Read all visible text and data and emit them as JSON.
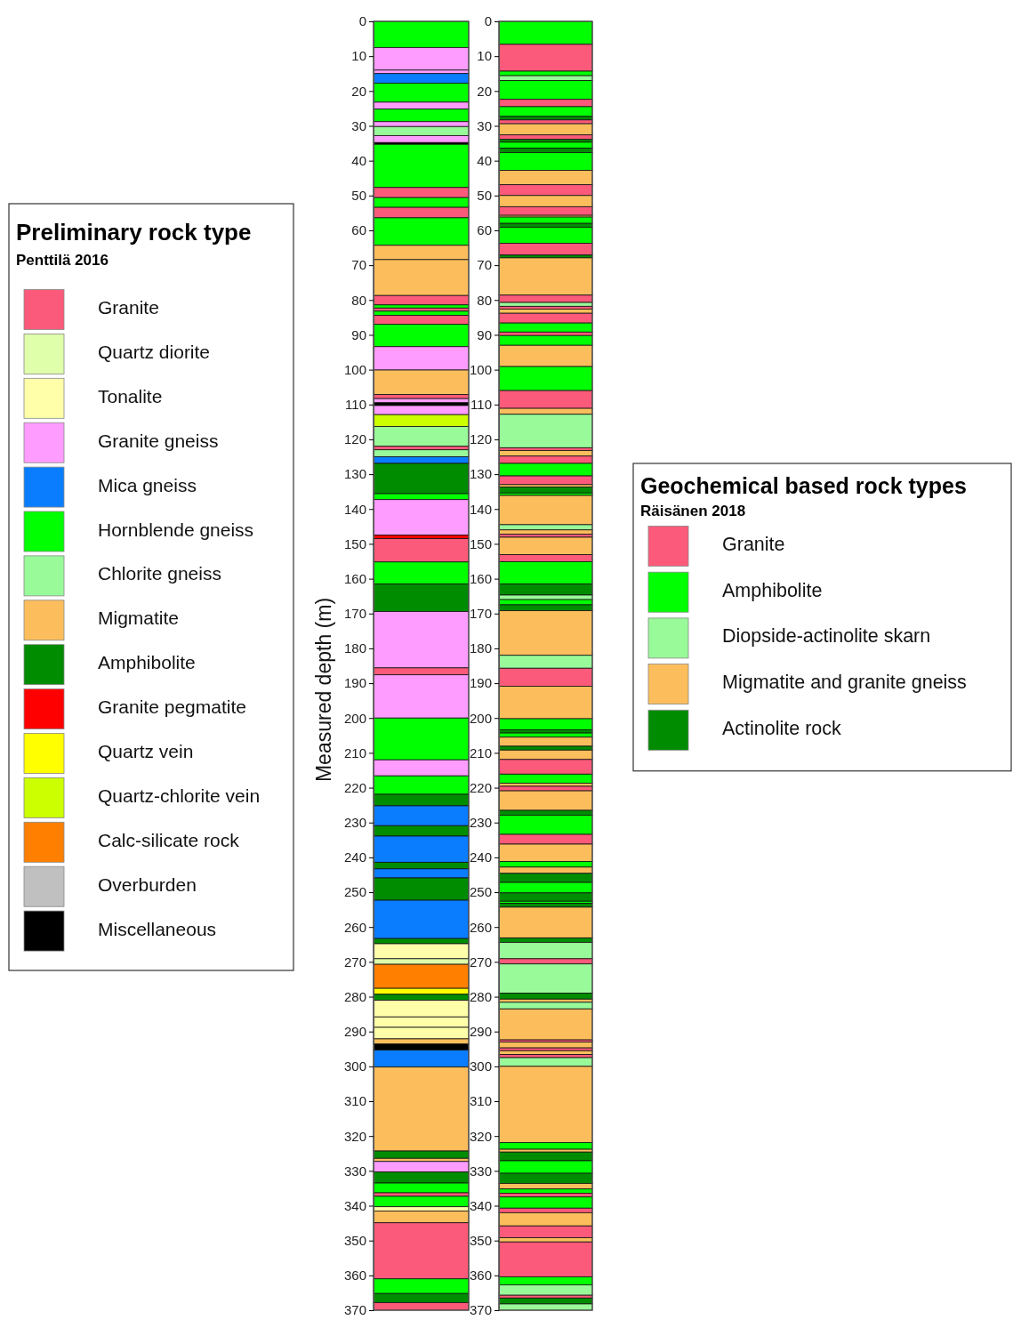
{
  "chart_data": [
    {
      "type": "bar",
      "stacked": true,
      "categories": [
        null
      ],
      "ylabel": "Measured depth (m)",
      "ylim": [
        370,
        0
      ],
      "yticks": [
        0,
        10,
        20,
        30,
        40,
        50,
        60,
        70,
        80,
        90,
        100,
        110,
        120,
        130,
        140,
        150,
        160,
        170,
        180,
        190,
        200,
        210,
        220,
        230,
        240,
        250,
        260,
        270,
        280,
        290,
        300,
        310,
        320,
        330,
        340,
        350,
        360,
        370
      ],
      "legend": "left",
      "legend_title": "Preliminary rock type",
      "annotations": [
        "Penttilä 2016"
      ],
      "series": [
        {
          "name": "Granite",
          "color": "#fc5a7a",
          "values": [
            null
          ]
        },
        {
          "name": "Quartz diorite",
          "color": "#dfffaa",
          "values": [
            null
          ]
        },
        {
          "name": "Tonalite",
          "color": "#ffffaa",
          "values": [
            null
          ]
        },
        {
          "name": "Granite gneiss",
          "color": "#ff9cff",
          "values": [
            null
          ]
        },
        {
          "name": "Mica gneiss",
          "color": "#0a7dff",
          "values": [
            null
          ]
        },
        {
          "name": "Hornblende gneiss",
          "color": "#00ff00",
          "values": [
            null
          ]
        },
        {
          "name": "Chlorite gneiss",
          "color": "#99fa99",
          "values": [
            null
          ]
        },
        {
          "name": "Migmatite",
          "color": "#fcbe5c",
          "values": [
            null
          ]
        },
        {
          "name": "Amphibolite",
          "color": "#008c00",
          "values": [
            null
          ]
        },
        {
          "name": "Granite pegmatite",
          "color": "#ff0000",
          "values": [
            null
          ]
        },
        {
          "name": "Quartz vein",
          "color": "#ffff00",
          "values": [
            null
          ]
        },
        {
          "name": "Quartz-chlorite vein",
          "color": "#ccff00",
          "values": [
            null
          ]
        },
        {
          "name": "Calc-silicate rock",
          "color": "#ff8000",
          "values": [
            null
          ]
        },
        {
          "name": "Overburden",
          "color": "#c0c0c0",
          "values": [
            null
          ]
        },
        {
          "name": "Miscellaneous",
          "color": "#000000",
          "values": [
            null
          ]
        },
        {
          "color": "#00ff00",
          "values": [
            7.5
          ]
        },
        {
          "color": "#ff9cff",
          "values": [
            6.5
          ]
        },
        {
          "color": "#ff9cff",
          "values": [
            1
          ]
        },
        {
          "color": "#0a7dff",
          "values": [
            2.8
          ]
        },
        {
          "color": "#00ff00",
          "values": [
            5.4
          ]
        },
        {
          "color": "#ff9cff",
          "values": [
            2
          ]
        },
        {
          "color": "#00ff00",
          "values": [
            3.6
          ]
        },
        {
          "color": "#ff9cff",
          "values": [
            1.4
          ]
        },
        {
          "color": "#99fa99",
          "values": [
            2.6
          ]
        },
        {
          "color": "#ff9cff",
          "values": [
            2
          ]
        },
        {
          "color": "#000000",
          "values": [
            0.5
          ]
        },
        {
          "color": "#00ff00",
          "values": [
            12.4
          ]
        },
        {
          "color": "#fc5a7a",
          "values": [
            2.9
          ]
        },
        {
          "color": "#00ff00",
          "values": [
            2.8
          ]
        },
        {
          "color": "#fc5a7a",
          "values": [
            3
          ]
        },
        {
          "color": "#00ff00",
          "values": [
            7.9
          ]
        },
        {
          "color": "#fcbe5c",
          "values": [
            4.1
          ]
        },
        {
          "color": "#fcbe5c",
          "values": [
            10.3
          ]
        },
        {
          "color": "#fc5a7a",
          "values": [
            2.7
          ]
        },
        {
          "color": "#00ff00",
          "values": [
            0.9
          ]
        },
        {
          "color": "#fc5a7a",
          "values": [
            0.9
          ]
        },
        {
          "color": "#00ff00",
          "values": [
            1.2
          ]
        },
        {
          "color": "#fc5a7a",
          "values": [
            2.6
          ]
        },
        {
          "color": "#00ff00",
          "values": [
            6.4
          ]
        },
        {
          "color": "#ff9cff",
          "values": [
            6.7
          ]
        },
        {
          "color": "#fcbe5c",
          "values": [
            7
          ]
        },
        {
          "color": "#fc5a7a",
          "values": [
            1.2
          ]
        },
        {
          "color": "#ff9cff",
          "values": [
            1.2
          ]
        },
        {
          "color": "#000000",
          "values": [
            0.8
          ]
        },
        {
          "color": "#ff9cff",
          "values": [
            2.6
          ]
        },
        {
          "color": "#ccff00",
          "values": [
            3.4
          ]
        },
        {
          "color": "#99fa99",
          "values": [
            5.7
          ]
        },
        {
          "color": "#fc5a7a",
          "values": [
            1
          ]
        },
        {
          "color": "#99fa99",
          "values": [
            2
          ]
        },
        {
          "color": "#0a7dff",
          "values": [
            1.9
          ]
        },
        {
          "color": "#008c00",
          "values": [
            8.7
          ]
        },
        {
          "color": "#00ff00",
          "values": [
            1.7
          ]
        },
        {
          "color": "#ff9cff",
          "values": [
            10.2
          ]
        },
        {
          "color": "#ff0000",
          "values": [
            1
          ]
        },
        {
          "color": "#fc5a7a",
          "values": [
            6.7
          ]
        },
        {
          "color": "#00ff00",
          "values": [
            6.3
          ]
        },
        {
          "color": "#008c00",
          "values": [
            7.9
          ]
        },
        {
          "color": "#ff9cff",
          "values": [
            16.2
          ]
        },
        {
          "color": "#fc5a7a",
          "values": [
            2
          ]
        },
        {
          "color": "#ff9cff",
          "values": [
            12.4
          ]
        },
        {
          "color": "#00ff00",
          "values": [
            12
          ]
        },
        {
          "color": "#ff9cff",
          "values": [
            4.6
          ]
        },
        {
          "color": "#00ff00",
          "values": [
            5.3
          ]
        },
        {
          "color": "#008c00",
          "values": [
            3.3
          ]
        },
        {
          "color": "#0a7dff",
          "values": [
            5.7
          ]
        },
        {
          "color": "#008c00",
          "values": [
            3
          ]
        },
        {
          "color": "#0a7dff",
          "values": [
            7.5
          ]
        },
        {
          "color": "#008c00",
          "values": [
            1.9
          ]
        },
        {
          "color": "#0a7dff",
          "values": [
            2.6
          ]
        },
        {
          "color": "#008c00",
          "values": [
            6.4
          ]
        },
        {
          "color": "#0a7dff",
          "values": [
            11
          ]
        },
        {
          "color": "#008c00",
          "values": [
            1.5
          ]
        },
        {
          "color": "#ffffaa",
          "values": [
            4.3
          ]
        },
        {
          "color": "#dfffaa",
          "values": [
            1.6
          ]
        },
        {
          "color": "#ff8000",
          "values": [
            6.9
          ]
        },
        {
          "color": "#ffff00",
          "values": [
            1.7
          ]
        },
        {
          "color": "#008c00",
          "values": [
            1.7
          ]
        },
        {
          "color": "#ffffaa",
          "values": [
            4.8
          ]
        },
        {
          "color": "#ffffaa",
          "values": [
            3
          ]
        },
        {
          "color": "#ffffaa",
          "values": [
            3.3
          ]
        },
        {
          "color": "#fcbe5c",
          "values": [
            1.5
          ]
        },
        {
          "color": "#000000",
          "values": [
            1.7
          ]
        },
        {
          "color": "#0a7dff",
          "values": [
            4.9
          ]
        },
        {
          "color": "#fcbe5c",
          "values": [
            24.1
          ]
        },
        {
          "color": "#008c00",
          "values": [
            2.1
          ]
        },
        {
          "color": "#fcbe5c",
          "values": [
            0.9
          ]
        },
        {
          "color": "#ff9cff",
          "values": [
            3
          ]
        },
        {
          "color": "#008c00",
          "values": [
            3.2
          ]
        },
        {
          "color": "#00ff00",
          "values": [
            2.8
          ]
        },
        {
          "color": "#fc5a7a",
          "values": [
            1
          ]
        },
        {
          "color": "#00ff00",
          "values": [
            3
          ]
        },
        {
          "color": "#ffffaa",
          "values": [
            1.2
          ]
        },
        {
          "color": "#fcbe5c",
          "values": [
            3.4
          ]
        },
        {
          "color": "#fc5a7a",
          "values": [
            16.1
          ]
        },
        {
          "color": "#00ff00",
          "values": [
            4.2
          ]
        },
        {
          "color": "#008c00",
          "values": [
            2.6
          ]
        },
        {
          "color": "#fc5a7a",
          "values": [
            2.2
          ]
        }
      ]
    },
    {
      "type": "bar",
      "stacked": true,
      "categories": [
        null
      ],
      "ylim": [
        370,
        0
      ],
      "yticks": [
        0,
        10,
        20,
        30,
        40,
        50,
        60,
        70,
        80,
        90,
        100,
        110,
        120,
        130,
        140,
        150,
        160,
        170,
        180,
        190,
        200,
        210,
        220,
        230,
        240,
        250,
        260,
        270,
        280,
        290,
        300,
        310,
        320,
        330,
        340,
        350,
        360,
        370
      ],
      "legend": "right",
      "legend_title": "Geochemical based rock types",
      "annotations": [
        "Räisänen 2018"
      ],
      "series": [
        {
          "name": "Granite",
          "color": "#fc5a7a",
          "values": [
            null
          ]
        },
        {
          "name": "Amphibolite",
          "color": "#00ff00",
          "values": [
            null
          ]
        },
        {
          "name": "Diopside-actinolite skarn",
          "color": "#99fa99",
          "values": [
            null
          ]
        },
        {
          "name": "Migmatite and granite gneiss",
          "color": "#fcbe5c",
          "values": [
            null
          ]
        },
        {
          "name": "Actinolite rock",
          "color": "#008c00",
          "values": [
            null
          ]
        },
        {
          "color": "#00ff00",
          "values": [
            6.6
          ]
        },
        {
          "color": "#fc5a7a",
          "values": [
            7.7
          ]
        },
        {
          "color": "#00ff00",
          "values": [
            1.3
          ]
        },
        {
          "color": "#99fa99",
          "values": [
            1.4
          ]
        },
        {
          "color": "#00ff00",
          "values": [
            5.4
          ]
        },
        {
          "color": "#fc5a7a",
          "values": [
            2.1
          ]
        },
        {
          "color": "#00ff00",
          "values": [
            2.8
          ]
        },
        {
          "color": "#008c00",
          "values": [
            1
          ]
        },
        {
          "color": "#fc5a7a",
          "values": [
            1.1
          ]
        },
        {
          "color": "#fcbe5c",
          "values": [
            3.2
          ]
        },
        {
          "color": "#fc5a7a",
          "values": [
            1.3
          ]
        },
        {
          "color": "#008c00",
          "values": [
            0.8
          ]
        },
        {
          "color": "#00ff00",
          "values": [
            1.7
          ]
        },
        {
          "color": "#008c00",
          "values": [
            1.3
          ]
        },
        {
          "color": "#00ff00",
          "values": [
            5.1
          ]
        },
        {
          "color": "#fcbe5c",
          "values": [
            4.1
          ]
        },
        {
          "color": "#fc5a7a",
          "values": [
            3.1
          ]
        },
        {
          "color": "#fcbe5c",
          "values": [
            3.2
          ]
        },
        {
          "color": "#fc5a7a",
          "values": [
            2.5
          ]
        },
        {
          "color": "#fcbe5c",
          "values": [
            0.5
          ]
        },
        {
          "color": "#00ff00",
          "values": [
            1.8
          ]
        },
        {
          "color": "#008c00",
          "values": [
            1.1
          ]
        },
        {
          "color": "#00ff00",
          "values": [
            4.6
          ]
        },
        {
          "color": "#fc5a7a",
          "values": [
            3.4
          ]
        },
        {
          "color": "#008c00",
          "values": [
            0.8
          ]
        },
        {
          "color": "#fcbe5c",
          "values": [
            10.7
          ]
        },
        {
          "color": "#fc5a7a",
          "values": [
            2.1
          ]
        },
        {
          "color": "#99fa99",
          "values": [
            1.1
          ]
        },
        {
          "color": "#fc5a7a",
          "values": [
            0.8
          ]
        },
        {
          "color": "#fcbe5c",
          "values": [
            1.2
          ]
        },
        {
          "color": "#fc5a7a",
          "values": [
            2.8
          ]
        },
        {
          "color": "#00ff00",
          "values": [
            2.6
          ]
        },
        {
          "color": "#fc5a7a",
          "values": [
            1
          ]
        },
        {
          "color": "#00ff00",
          "values": [
            2.8
          ]
        },
        {
          "color": "#fcbe5c",
          "values": [
            6.1
          ]
        },
        {
          "color": "#00ff00",
          "values": [
            6.9
          ]
        },
        {
          "color": "#fc5a7a",
          "values": [
            5.1
          ]
        },
        {
          "color": "#fcbe5c",
          "values": [
            1.7
          ]
        },
        {
          "color": "#99fa99",
          "values": [
            9.6
          ]
        },
        {
          "color": "#fc5a7a",
          "values": [
            0.8
          ]
        },
        {
          "color": "#fcbe5c",
          "values": [
            1.6
          ]
        },
        {
          "color": "#fc5a7a",
          "values": [
            2.1
          ]
        },
        {
          "color": "#00ff00",
          "values": [
            3.6
          ]
        },
        {
          "color": "#fc5a7a",
          "values": [
            2.5
          ]
        },
        {
          "color": "#fcbe5c",
          "values": [
            0.7
          ]
        },
        {
          "color": "#008c00",
          "values": [
            1.7
          ]
        },
        {
          "color": "#00ff00",
          "values": [
            0.7
          ]
        },
        {
          "color": "#fcbe5c",
          "values": [
            8.4
          ]
        },
        {
          "color": "#99fa99",
          "values": [
            1.5
          ]
        },
        {
          "color": "#fcbe5c",
          "values": [
            1.2
          ]
        },
        {
          "color": "#fc5a7a",
          "values": [
            0.9
          ]
        },
        {
          "color": "#fcbe5c",
          "values": [
            5
          ]
        },
        {
          "color": "#fc5a7a",
          "values": [
            2
          ]
        },
        {
          "color": "#00ff00",
          "values": [
            6.4
          ]
        },
        {
          "color": "#008c00",
          "values": [
            3.2
          ]
        },
        {
          "color": "#99fa99",
          "values": [
            1.3
          ]
        },
        {
          "color": "#00ff00",
          "values": [
            1.5
          ]
        },
        {
          "color": "#008c00",
          "values": [
            1.7
          ]
        },
        {
          "color": "#fcbe5c",
          "values": [
            12.8
          ]
        },
        {
          "color": "#99fa99",
          "values": [
            3.7
          ]
        },
        {
          "color": "#fc5a7a",
          "values": [
            5.2
          ]
        },
        {
          "color": "#fcbe5c",
          "values": [
            9.3
          ]
        },
        {
          "color": "#00ff00",
          "values": [
            3.2
          ]
        },
        {
          "color": "#008c00",
          "values": [
            0.9
          ]
        },
        {
          "color": "#00ff00",
          "values": [
            1.2
          ]
        },
        {
          "color": "#fcbe5c",
          "values": [
            2.6
          ]
        },
        {
          "color": "#008c00",
          "values": [
            1.1
          ]
        },
        {
          "color": "#fcbe5c",
          "values": [
            2.7
          ]
        },
        {
          "color": "#fc5a7a",
          "values": [
            4.2
          ]
        },
        {
          "color": "#00ff00",
          "values": [
            2.6
          ]
        },
        {
          "color": "#fcbe5c",
          "values": [
            0.9
          ]
        },
        {
          "color": "#fc5a7a",
          "values": [
            1.3
          ]
        },
        {
          "color": "#fcbe5c",
          "values": [
            5.6
          ]
        },
        {
          "color": "#008c00",
          "values": [
            1.4
          ]
        },
        {
          "color": "#00ff00",
          "values": [
            5.5
          ]
        },
        {
          "color": "#fc5a7a",
          "values": [
            2.8
          ]
        },
        {
          "color": "#fcbe5c",
          "values": [
            5
          ]
        },
        {
          "color": "#00ff00",
          "values": [
            1.6
          ]
        },
        {
          "color": "#fcbe5c",
          "values": [
            1.8
          ]
        },
        {
          "color": "#008c00",
          "values": [
            2.6
          ]
        },
        {
          "color": "#00ff00",
          "values": [
            3
          ]
        },
        {
          "color": "#008c00",
          "values": [
            2.4
          ]
        },
        {
          "color": "#00ff00",
          "values": [
            0.6
          ]
        },
        {
          "color": "#008c00",
          "values": [
            1.1
          ]
        },
        {
          "color": "#fcbe5c",
          "values": [
            8.8
          ]
        },
        {
          "color": "#008c00",
          "values": [
            1.3
          ]
        },
        {
          "color": "#99fa99",
          "values": [
            4.7
          ]
        },
        {
          "color": "#fc5a7a",
          "values": [
            1.5
          ]
        },
        {
          "color": "#99fa99",
          "values": [
            8.4
          ]
        },
        {
          "color": "#008c00",
          "values": [
            1.7
          ]
        },
        {
          "color": "#fcbe5c",
          "values": [
            0.9
          ]
        },
        {
          "color": "#99fa99",
          "values": [
            1.9
          ]
        },
        {
          "color": "#fcbe5c",
          "values": [
            8.9
          ]
        },
        {
          "color": "#fc5a7a",
          "values": [
            0.6
          ]
        },
        {
          "color": "#fcbe5c",
          "values": [
            1.7
          ]
        },
        {
          "color": "#fc5a7a",
          "values": [
            0.8
          ]
        },
        {
          "color": "#fcbe5c",
          "values": [
            1.1
          ]
        },
        {
          "color": "#fc5a7a",
          "values": [
            0.9
          ]
        },
        {
          "color": "#99fa99",
          "values": [
            2.5
          ]
        },
        {
          "color": "#fcbe5c",
          "values": [
            21.9
          ]
        },
        {
          "color": "#00ff00",
          "values": [
            1.9
          ]
        },
        {
          "color": "#fcbe5c",
          "values": [
            0.8
          ]
        },
        {
          "color": "#008c00",
          "values": [
            2.5
          ]
        },
        {
          "color": "#00ff00",
          "values": [
            3.6
          ]
        },
        {
          "color": "#008c00",
          "values": [
            2.9
          ]
        },
        {
          "color": "#fcbe5c",
          "values": [
            1.6
          ]
        },
        {
          "color": "#00ff00",
          "values": [
            1.2
          ]
        },
        {
          "color": "#fc5a7a",
          "values": [
            1.1
          ]
        },
        {
          "color": "#00ff00",
          "values": [
            3.2
          ]
        },
        {
          "color": "#fc5a7a",
          "values": [
            1.3
          ]
        },
        {
          "color": "#fcbe5c",
          "values": [
            3.8
          ]
        },
        {
          "color": "#fc5a7a",
          "values": [
            3.4
          ]
        },
        {
          "color": "#fcbe5c",
          "values": [
            1.2
          ]
        },
        {
          "color": "#fc5a7a",
          "values": [
            10
          ]
        },
        {
          "color": "#00ff00",
          "values": [
            2.3
          ]
        },
        {
          "color": "#99fa99",
          "values": [
            3
          ]
        },
        {
          "color": "#fc5a7a",
          "values": [
            0.8
          ]
        },
        {
          "color": "#008c00",
          "values": [
            1.7
          ]
        },
        {
          "color": "#99fa99",
          "values": [
            1.8
          ]
        }
      ]
    }
  ]
}
